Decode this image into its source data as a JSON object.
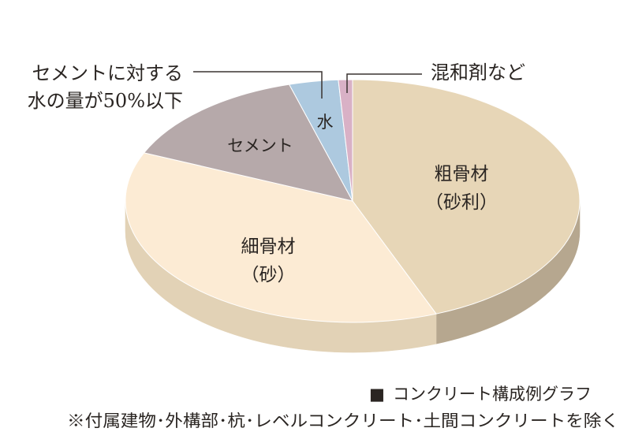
{
  "chart_data": {
    "type": "pie",
    "title": "",
    "series": [
      {
        "slices": [
          {
            "label": "粗骨材",
            "sublabel": "（砂利）",
            "value": 44,
            "color": "#e7d6b7",
            "side_color": "#b6a78f"
          },
          {
            "label": "細骨材",
            "sublabel": "（砂）",
            "value": 37.5,
            "color": "#fcebd4",
            "side_color": "#e2d2b6"
          },
          {
            "label": "セメント",
            "sublabel": "",
            "value": 14,
            "color": "#b6a9aa",
            "side_color": "#8d8283"
          },
          {
            "label": "水",
            "sublabel": "",
            "value": 3.5,
            "color": "#adc9df",
            "side_color": "#86a0b4"
          },
          {
            "label": "混和剤など",
            "sublabel": "",
            "value": 1,
            "color": "#d9b1c6",
            "side_color": "#ad8d9e"
          }
        ]
      }
    ],
    "annotations": {
      "water_note_line1": "セメントに対する",
      "water_note_line2": "水の量が50%以下",
      "admixture_note": "混和剤など"
    },
    "legend": {
      "marker": "■",
      "title": "コンクリート構成例グラフ",
      "footnote": "※付属建物･外構部･杭･レベルコンクリート･土間コンクリートを除く"
    }
  }
}
